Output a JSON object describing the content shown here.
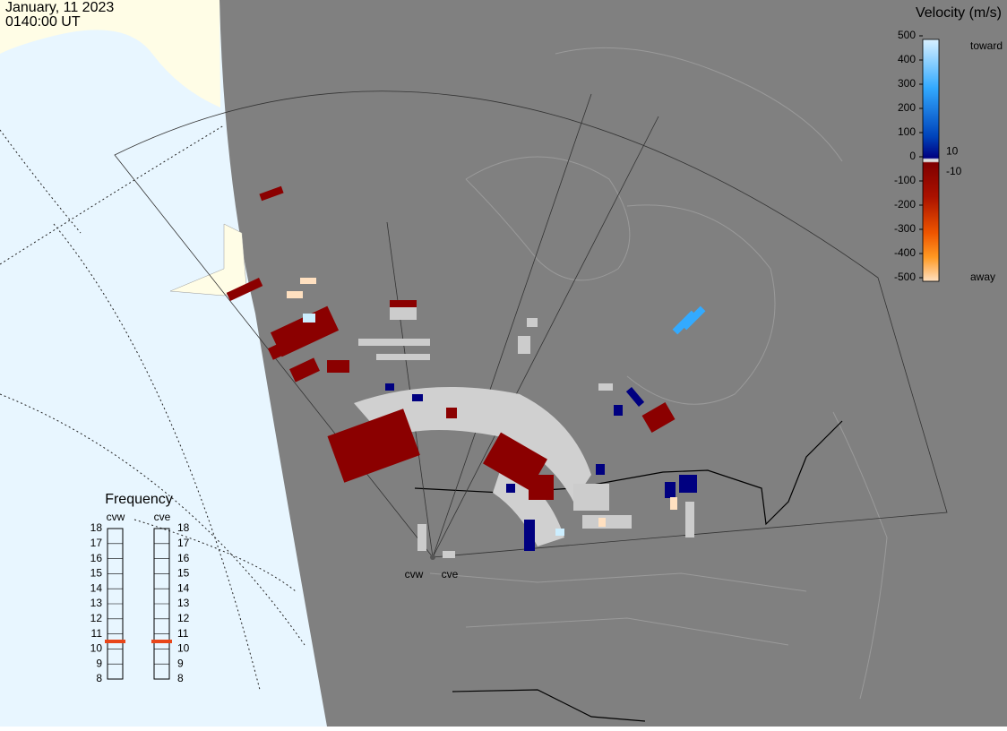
{
  "header": {
    "date": "January, 11 2023",
    "time": "0140:00 UT"
  },
  "velocity_scale": {
    "title": "Velocity (m/s)",
    "range": [
      -500,
      500
    ],
    "ticks": [
      500,
      400,
      300,
      200,
      100,
      0,
      -100,
      -200,
      -300,
      -400,
      -500
    ],
    "inner_ticks": [
      10,
      -10
    ],
    "toward": "toward",
    "away": "away"
  },
  "frequency": {
    "title": "Frequency",
    "range": [
      8,
      18
    ],
    "ticks": [
      8,
      9,
      10,
      11,
      12,
      13,
      14,
      15,
      16,
      17,
      18
    ],
    "radars": [
      {
        "name": "cvw",
        "value": 10.5
      },
      {
        "name": "cve",
        "value": 10.5
      }
    ]
  },
  "map_labels": [
    "cvw",
    "cve"
  ]
}
